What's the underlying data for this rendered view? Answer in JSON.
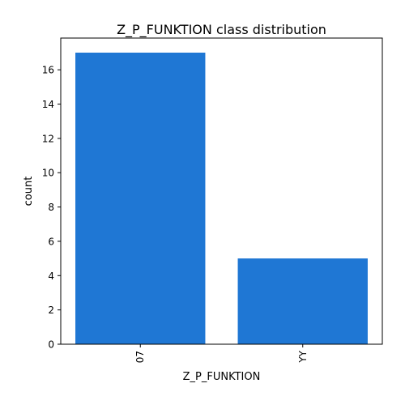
{
  "chart_data": {
    "type": "bar",
    "title": "Z_P_FUNKTION class distribution",
    "xlabel": "Z_P_FUNKTION",
    "ylabel": "count",
    "categories": [
      "07",
      "YY"
    ],
    "values": [
      17,
      5
    ],
    "ylim": [
      0,
      17.85
    ],
    "yticks": [
      0,
      2,
      4,
      6,
      8,
      10,
      12,
      14,
      16
    ],
    "bar_color": "#1f77d4",
    "grid": false,
    "legend": "none"
  }
}
